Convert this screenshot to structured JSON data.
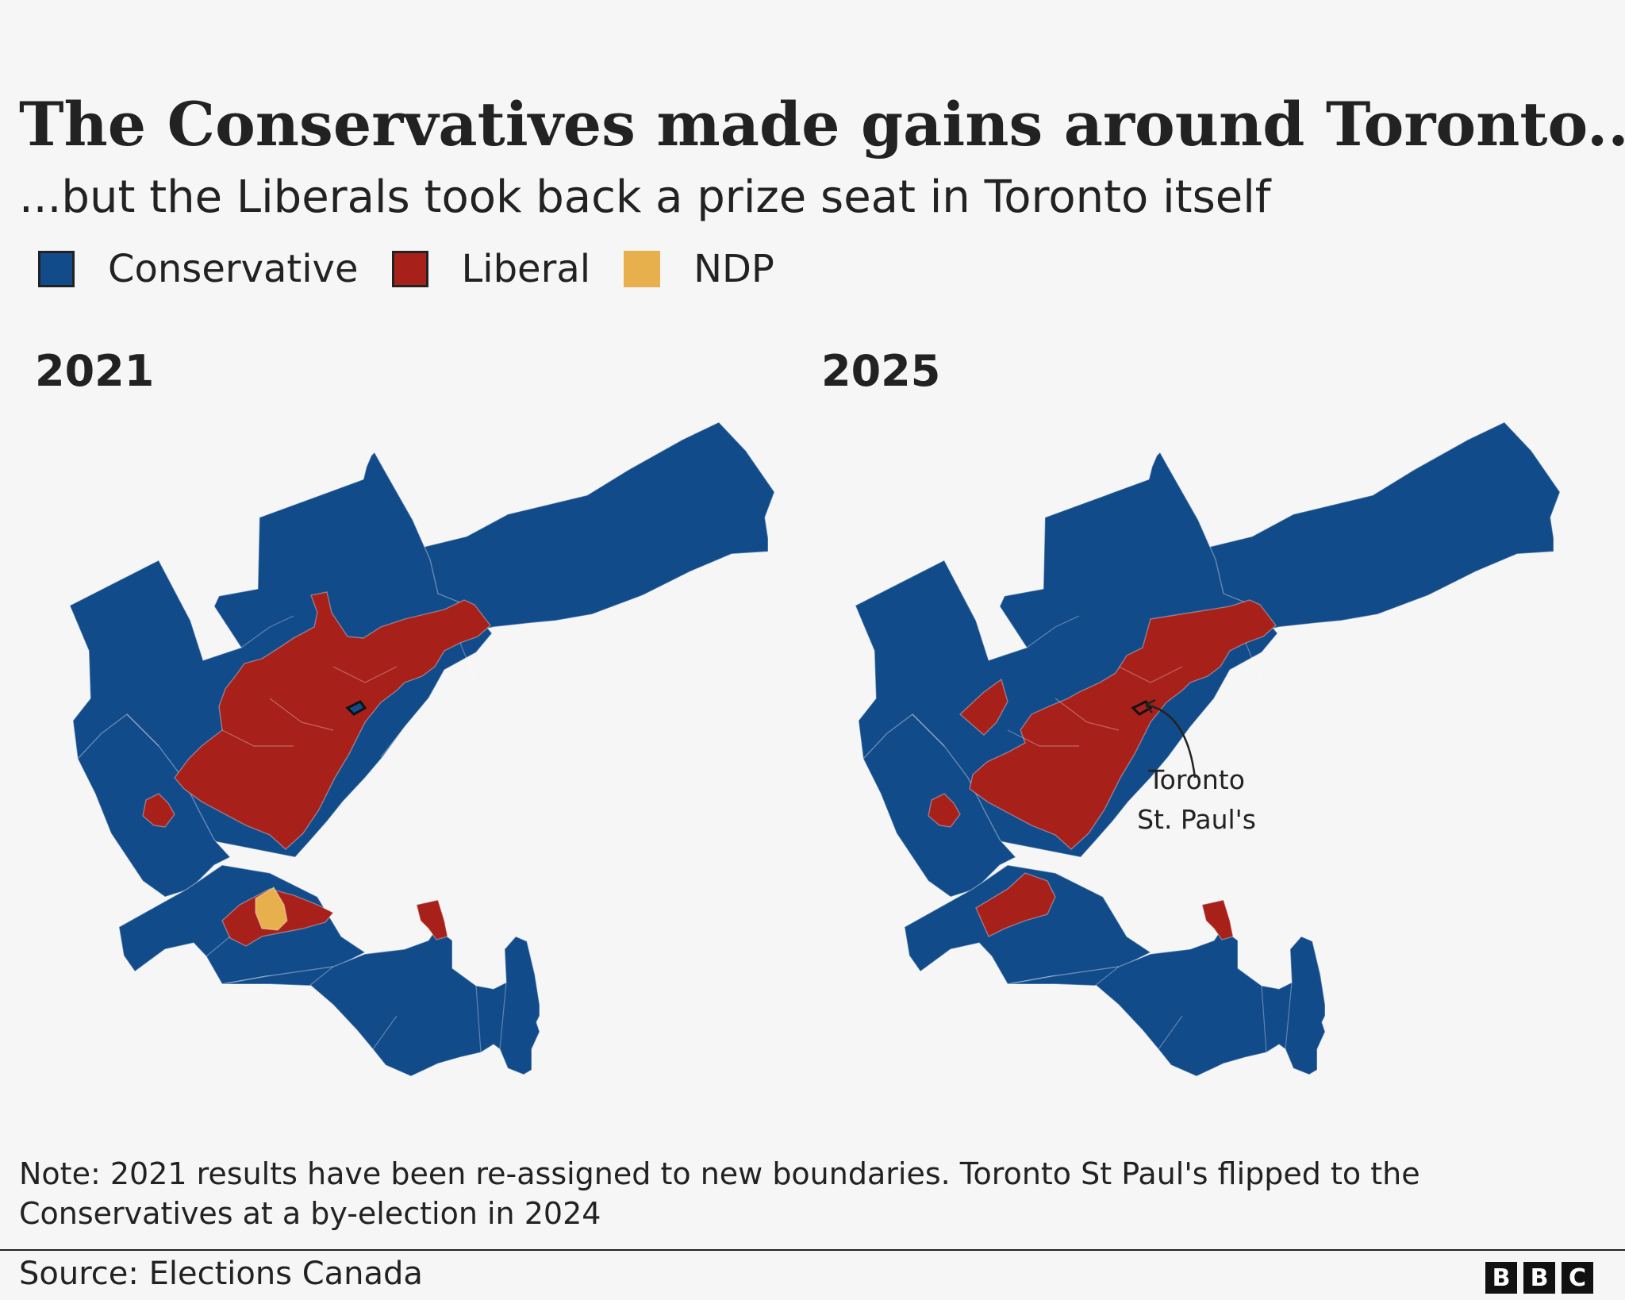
{
  "title": "The Conservatives made gains around Toronto...",
  "subtitle": "...but the Liberals took back a prize seat in Toronto itself",
  "legend": [
    {
      "label": "Conservative",
      "color": "#124b8a"
    },
    {
      "label": "Liberal",
      "color": "#a8201a"
    },
    {
      "label": "NDP",
      "color": "#e8b04d"
    }
  ],
  "maps": [
    {
      "year": "2021"
    },
    {
      "year": "2025",
      "annotation": {
        "line1": "Toronto",
        "line2": "St. Paul's"
      }
    }
  ],
  "note": "Note: 2021 results have been re-assigned to new boundaries.  Toronto St Paul's flipped to the Conservatives at a by-election in 2024",
  "source": "Source: Elections Canada",
  "logo": [
    "B",
    "B",
    "C"
  ]
}
